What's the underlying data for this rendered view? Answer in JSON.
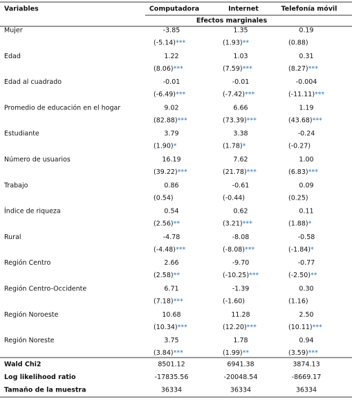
{
  "header": {
    "variables": "Variables",
    "columns": [
      "Computadora",
      "Internet",
      "Telefonía móvil"
    ],
    "subheader": "Efectos marginales"
  },
  "rows": [
    {
      "label": "Mujer",
      "coef": [
        "-3.85",
        "1.35",
        "0.19"
      ],
      "t": [
        {
          "value": "(-5.14)",
          "stars": "***"
        },
        {
          "value": "(1.93)",
          "stars": "**"
        },
        {
          "value": "(0.88)"
        }
      ]
    },
    {
      "label": "Edad",
      "coef": [
        "1.22",
        "1.03",
        "0.31"
      ],
      "t": [
        {
          "value": "(8.06)",
          "stars": "***"
        },
        {
          "value": "(7.59)",
          "stars": "***"
        },
        {
          "value": "(8.27)",
          "stars": "***"
        }
      ]
    },
    {
      "label": "Edad al cuadrado",
      "coef": [
        "-0.01",
        "-0.01",
        "-0.004"
      ],
      "t": [
        {
          "value": "(-6.49)",
          "stars": "***"
        },
        {
          "value": "(-7.42)",
          "stars": "***"
        },
        {
          "value": "(-11.11)",
          "stars": "***"
        }
      ]
    },
    {
      "label": "Promedio de educación en el hogar",
      "coef": [
        "9.02",
        "6.66",
        "1.19"
      ],
      "t": [
        {
          "value": "(82.88)",
          "stars": "***"
        },
        {
          "value": "(73.39)",
          "stars": "***"
        },
        {
          "value": "(43.68)",
          "stars": "***"
        }
      ]
    },
    {
      "label": "Estudiante",
      "coef": [
        "3.79",
        "3.38",
        "-0.24"
      ],
      "t": [
        {
          "value": "(1.90)",
          "stars": "*"
        },
        {
          "value": "(1.78)",
          "stars": "*"
        },
        {
          "value": "(-0.27)"
        }
      ]
    },
    {
      "label": "Número de usuarios",
      "coef": [
        "16.19",
        "7.62",
        "1.00"
      ],
      "t": [
        {
          "value": "(39.22)",
          "stars": "***"
        },
        {
          "value": "(21.78)",
          "stars": "***"
        },
        {
          "value": "(6.83)",
          "stars": "***"
        }
      ]
    },
    {
      "label": "Trabajo",
      "coef": [
        "0.86",
        "-0.61",
        "0.09"
      ],
      "t": [
        {
          "value": "(0.54)"
        },
        {
          "value": "(-0.44)"
        },
        {
          "value": "(0.25)"
        }
      ]
    },
    {
      "label": "Índice de riqueza",
      "coef": [
        "0.54",
        "0.62",
        "0.11"
      ],
      "t": [
        {
          "value": "(2.56)",
          "stars": "**"
        },
        {
          "value": "(3.21)",
          "stars": "***"
        },
        {
          "value": "(1.88)",
          "stars": "*"
        }
      ]
    },
    {
      "label": "Rural",
      "coef": [
        "-4.78",
        "-8.08",
        "-0.58"
      ],
      "t": [
        {
          "value": "(-4.48)",
          "stars": "***"
        },
        {
          "value": "(-8.08)",
          "stars": "***"
        },
        {
          "value": "(-1.84)",
          "stars": "*"
        }
      ]
    },
    {
      "label": "Región Centro",
      "coef": [
        "2.66",
        "-9.70",
        "-0.77"
      ],
      "t": [
        {
          "value": "(2.58)",
          "stars": "**"
        },
        {
          "value": "(-10.25)",
          "stars": "***"
        },
        {
          "value": "(-2.50)",
          "stars": "**"
        }
      ]
    },
    {
      "label": "Región Centro-Occidente",
      "coef": [
        "6.71",
        "-1.39",
        "0.30"
      ],
      "t": [
        {
          "value": "(7.18)",
          "stars": "***"
        },
        {
          "value": "(-1.60)"
        },
        {
          "value": "(1.16)"
        }
      ]
    },
    {
      "label": "Región Noroeste",
      "coef": [
        "10.68",
        "11.28",
        "2.50"
      ],
      "t": [
        {
          "value": "(10.34)",
          "stars": "***"
        },
        {
          "value": "(12.20)",
          "stars": "***"
        },
        {
          "value": "(10.11)",
          "stars": "***"
        }
      ]
    },
    {
      "label": "Región Noreste",
      "coef": [
        "3.75",
        "1.78",
        "0.94"
      ],
      "t": [
        {
          "value": "(3.84)",
          "stars": "***"
        },
        {
          "value": "(1.99)",
          "stars": "**"
        },
        {
          "value": "(3.59)",
          "stars": "***"
        }
      ]
    }
  ],
  "stats": [
    {
      "label": "Wald Chi2",
      "values": [
        "8501.12",
        "6941.38",
        "3874.13"
      ]
    },
    {
      "label": "Log likelihood ratio",
      "values": [
        "-17835.56",
        "-20048.54",
        "-8669.17"
      ]
    },
    {
      "label": "Tamaño de la muestra",
      "values": [
        "36334",
        "36334",
        "36334"
      ]
    }
  ]
}
